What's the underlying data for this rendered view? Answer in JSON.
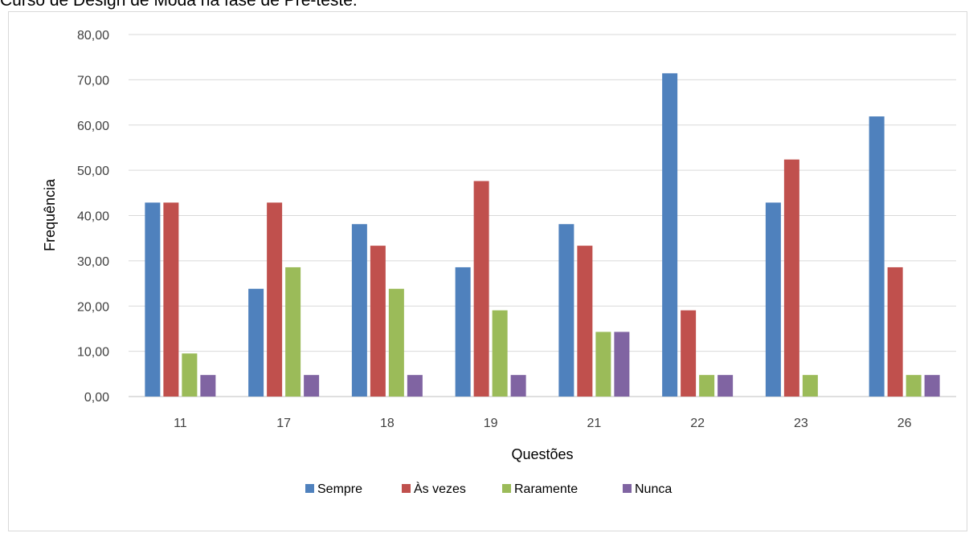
{
  "caption": "Curso de Design de Moda na fase de Pré-teste.",
  "chart_data": {
    "type": "bar",
    "categories": [
      "11",
      "17",
      "18",
      "19",
      "21",
      "22",
      "23",
      "26"
    ],
    "series": [
      {
        "name": "Sempre",
        "color": "#4f81bd",
        "values": [
          42.86,
          23.81,
          38.1,
          28.57,
          38.1,
          71.43,
          42.86,
          61.9
        ]
      },
      {
        "name": "Às vezes",
        "color": "#c0504d",
        "values": [
          42.86,
          42.86,
          33.33,
          47.62,
          33.33,
          19.05,
          52.38,
          28.57
        ]
      },
      {
        "name": "Raramente",
        "color": "#9bbb59",
        "values": [
          9.52,
          28.57,
          23.81,
          19.05,
          14.29,
          4.76,
          4.76,
          4.76
        ]
      },
      {
        "name": "Nunca",
        "color": "#8064a2",
        "values": [
          4.76,
          4.76,
          4.76,
          4.76,
          14.29,
          4.76,
          0,
          4.76
        ]
      }
    ],
    "xlabel": "Questões",
    "ylabel": "Frequência",
    "ylim": [
      0,
      80
    ],
    "yticks": [
      "0,00",
      "10,00",
      "20,00",
      "30,00",
      "40,00",
      "50,00",
      "60,00",
      "70,00",
      "80,00"
    ],
    "grid": true,
    "legend_position": "bottom"
  }
}
